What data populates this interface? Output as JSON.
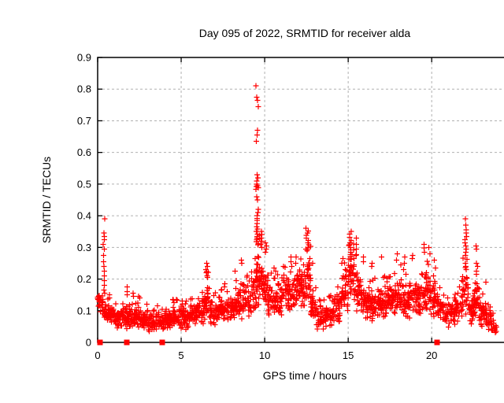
{
  "chart_data": {
    "type": "scatter",
    "title": "Day 095 of 2022, SRMTID for receiver alda",
    "xlabel": "GPS time / hours",
    "ylabel": "SRMTID / TECUs",
    "xlim": [
      0,
      24.8
    ],
    "ylim": [
      0,
      0.9
    ],
    "xticks": [
      0,
      5,
      10,
      15,
      20
    ],
    "xtick_labels": [
      "0",
      "5",
      "10",
      "15",
      "20"
    ],
    "yticks": [
      0,
      0.1,
      0.2,
      0.3,
      0.4,
      0.5,
      0.6,
      0.7,
      0.8,
      0.9
    ],
    "ytick_labels": [
      "0",
      "0.1",
      "0.2",
      "0.3",
      "0.4",
      "0.5",
      "0.6",
      "0.7",
      "0.8",
      "0.9"
    ],
    "grid": true,
    "legend": "none",
    "marker": "plus-cross",
    "marker_color": "#ff0000",
    "grid_color": "#b0b0b0",
    "border_color": "#000000",
    "background_color": "#ffffff",
    "seed": 7,
    "band_segments": [
      [
        0.0,
        0.1,
        0.125,
        0.15,
        10
      ],
      [
        0.05,
        0.3,
        0.095,
        0.14,
        16
      ],
      [
        0.3,
        0.5,
        0.075,
        0.13,
        14
      ],
      [
        0.5,
        1.0,
        0.05,
        0.12,
        40
      ],
      [
        1.0,
        1.5,
        0.045,
        0.11,
        40
      ],
      [
        1.5,
        2.0,
        0.04,
        0.115,
        44
      ],
      [
        2.0,
        2.5,
        0.04,
        0.11,
        44
      ],
      [
        2.5,
        3.0,
        0.035,
        0.105,
        44
      ],
      [
        3.0,
        3.5,
        0.03,
        0.095,
        40
      ],
      [
        3.5,
        4.0,
        0.035,
        0.1,
        40
      ],
      [
        4.0,
        4.5,
        0.04,
        0.11,
        42
      ],
      [
        4.5,
        5.0,
        0.045,
        0.12,
        42
      ],
      [
        5.0,
        5.5,
        0.04,
        0.115,
        42
      ],
      [
        5.5,
        6.0,
        0.05,
        0.13,
        42
      ],
      [
        6.0,
        6.4,
        0.055,
        0.15,
        34
      ],
      [
        6.4,
        6.75,
        0.07,
        0.195,
        30
      ],
      [
        6.75,
        7.2,
        0.05,
        0.14,
        38
      ],
      [
        7.2,
        7.7,
        0.055,
        0.15,
        40
      ],
      [
        7.7,
        8.2,
        0.06,
        0.16,
        40
      ],
      [
        8.2,
        8.7,
        0.065,
        0.17,
        40
      ],
      [
        8.7,
        9.2,
        0.07,
        0.19,
        40
      ],
      [
        9.2,
        9.45,
        0.09,
        0.23,
        22
      ],
      [
        9.45,
        9.75,
        0.11,
        0.3,
        40
      ],
      [
        9.75,
        10.2,
        0.09,
        0.26,
        40
      ],
      [
        10.2,
        10.7,
        0.075,
        0.19,
        42
      ],
      [
        10.7,
        11.2,
        0.08,
        0.2,
        42
      ],
      [
        11.2,
        11.7,
        0.09,
        0.22,
        44
      ],
      [
        11.7,
        12.2,
        0.1,
        0.24,
        44
      ],
      [
        12.2,
        12.45,
        0.1,
        0.24,
        22
      ],
      [
        12.45,
        12.75,
        0.12,
        0.29,
        30
      ],
      [
        12.75,
        13.1,
        0.06,
        0.16,
        30
      ],
      [
        13.1,
        13.6,
        0.035,
        0.12,
        34
      ],
      [
        13.6,
        14.1,
        0.04,
        0.13,
        38
      ],
      [
        14.1,
        14.6,
        0.06,
        0.17,
        40
      ],
      [
        14.6,
        15.0,
        0.09,
        0.22,
        36
      ],
      [
        15.0,
        15.35,
        0.13,
        0.3,
        38
      ],
      [
        15.35,
        15.8,
        0.09,
        0.24,
        40
      ],
      [
        15.8,
        16.3,
        0.07,
        0.19,
        42
      ],
      [
        16.3,
        16.8,
        0.06,
        0.18,
        42
      ],
      [
        16.8,
        17.3,
        0.065,
        0.19,
        42
      ],
      [
        17.3,
        17.8,
        0.07,
        0.2,
        42
      ],
      [
        17.8,
        18.3,
        0.08,
        0.215,
        42
      ],
      [
        18.3,
        18.8,
        0.07,
        0.2,
        42
      ],
      [
        18.8,
        19.3,
        0.08,
        0.205,
        42
      ],
      [
        19.3,
        19.8,
        0.085,
        0.23,
        42
      ],
      [
        19.8,
        20.3,
        0.075,
        0.21,
        40
      ],
      [
        20.3,
        20.8,
        0.05,
        0.16,
        38
      ],
      [
        20.8,
        21.3,
        0.04,
        0.14,
        36
      ],
      [
        21.3,
        21.8,
        0.05,
        0.17,
        36
      ],
      [
        21.8,
        22.2,
        0.08,
        0.23,
        34
      ],
      [
        22.2,
        22.55,
        0.05,
        0.16,
        30
      ],
      [
        22.55,
        22.85,
        0.07,
        0.21,
        28
      ],
      [
        22.85,
        23.2,
        0.04,
        0.14,
        30
      ],
      [
        23.2,
        23.55,
        0.03,
        0.11,
        26
      ],
      [
        23.55,
        23.9,
        0.02,
        0.08,
        20
      ]
    ],
    "outlier_columns": [
      [
        0.38,
        0.04,
        [
          0.39,
          0.345,
          0.335,
          0.325,
          0.31,
          0.295,
          0.275,
          0.255,
          0.24,
          0.225,
          0.21,
          0.195,
          0.18,
          0.165,
          0.155
        ]
      ],
      [
        0.7,
        0.05,
        [
          0.15,
          0.14
        ]
      ],
      [
        1.8,
        0.06,
        [
          0.175,
          0.16,
          0.15
        ]
      ],
      [
        2.15,
        0.05,
        [
          0.155,
          0.145
        ]
      ],
      [
        2.5,
        0.05,
        [
          0.145,
          0.14
        ]
      ],
      [
        4.55,
        0.05,
        [
          0.135,
          0.125
        ]
      ],
      [
        6.55,
        0.06,
        [
          0.25,
          0.24,
          0.23,
          0.22,
          0.21,
          0.205
        ]
      ],
      [
        7.6,
        0.05,
        [
          0.185,
          0.175
        ]
      ],
      [
        8.25,
        0.05,
        [
          0.225,
          0.195
        ]
      ],
      [
        8.65,
        0.05,
        [
          0.26,
          0.25
        ]
      ],
      [
        9.55,
        0.07,
        [
          0.81,
          0.775,
          0.765,
          0.745,
          0.67,
          0.655,
          0.635,
          0.53,
          0.52,
          0.51,
          0.5,
          0.495,
          0.492,
          0.488,
          0.483,
          0.46,
          0.45,
          0.42,
          0.41,
          0.4,
          0.392,
          0.385,
          0.375,
          0.365,
          0.358,
          0.35,
          0.342,
          0.335,
          0.33,
          0.325,
          0.318,
          0.312,
          0.308
        ]
      ],
      [
        9.8,
        0.06,
        [
          0.35,
          0.34,
          0.33,
          0.32,
          0.31,
          0.3
        ]
      ],
      [
        10.05,
        0.06,
        [
          0.315,
          0.305,
          0.295,
          0.285
        ]
      ],
      [
        10.6,
        0.05,
        [
          0.235,
          0.225
        ]
      ],
      [
        11.1,
        0.05,
        [
          0.24
        ]
      ],
      [
        11.6,
        0.06,
        [
          0.27,
          0.255,
          0.24
        ]
      ],
      [
        12.55,
        0.1,
        [
          0.36,
          0.352,
          0.345,
          0.338,
          0.33,
          0.322,
          0.315,
          0.308,
          0.3,
          0.295,
          0.29
        ]
      ],
      [
        12.85,
        0.05,
        [
          0.25
        ]
      ],
      [
        14.65,
        0.06,
        [
          0.265,
          0.25
        ]
      ],
      [
        15.15,
        0.08,
        [
          0.35,
          0.342,
          0.332,
          0.322,
          0.315,
          0.308,
          0.3,
          0.292,
          0.285
        ]
      ],
      [
        15.45,
        0.06,
        [
          0.33,
          0.31,
          0.295
        ]
      ],
      [
        15.9,
        0.05,
        [
          0.27,
          0.255
        ]
      ],
      [
        16.45,
        0.05,
        [
          0.25,
          0.24
        ]
      ],
      [
        16.95,
        0.05,
        [
          0.27
        ]
      ],
      [
        17.95,
        0.05,
        [
          0.28,
          0.26
        ]
      ],
      [
        18.4,
        0.05,
        [
          0.27,
          0.25
        ]
      ],
      [
        18.85,
        0.05,
        [
          0.275,
          0.265
        ]
      ],
      [
        19.55,
        0.06,
        [
          0.31,
          0.298,
          0.285
        ]
      ],
      [
        19.85,
        0.05,
        [
          0.3,
          0.28
        ]
      ],
      [
        20.15,
        0.05,
        [
          0.26
        ]
      ],
      [
        22.05,
        0.07,
        [
          0.39,
          0.37,
          0.355,
          0.345,
          0.335,
          0.325,
          0.315,
          0.305,
          0.295,
          0.285,
          0.275,
          0.262,
          0.25,
          0.24,
          0.23
        ]
      ],
      [
        22.7,
        0.06,
        [
          0.305,
          0.295,
          0.25,
          0.24,
          0.225,
          0.215
        ]
      ],
      [
        23.25,
        0.05,
        [
          0.19
        ]
      ]
    ],
    "zero_markers": [
      0.15,
      1.75,
      3.85,
      20.3
    ]
  }
}
